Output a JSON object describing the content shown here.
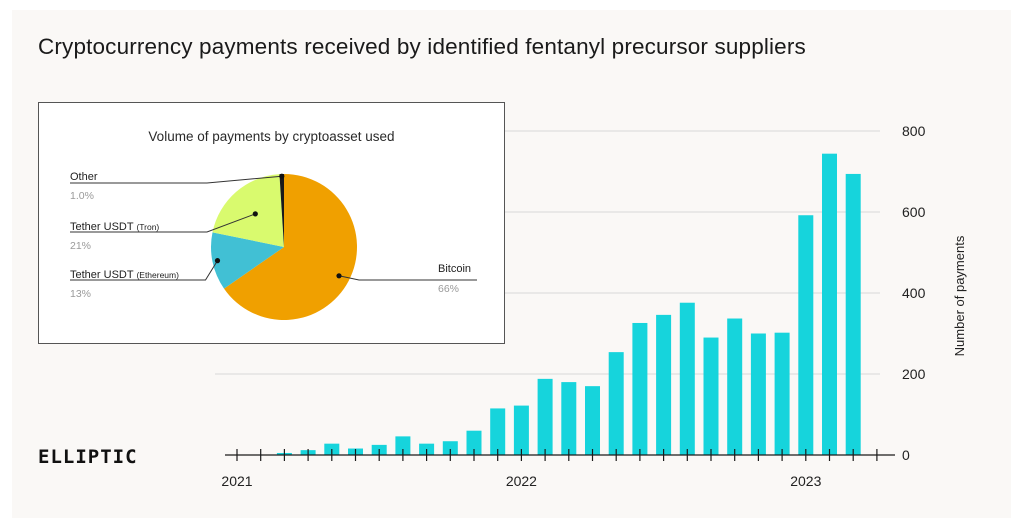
{
  "title": "Cryptocurrency payments received by identified fentanyl precursor suppliers",
  "logo": "ELLIPTIC",
  "colors": {
    "bar": "#16d4dc",
    "grid": "#d8d8d8",
    "bitcoin": "#f0a000",
    "tether_tron": "#d9fa6e",
    "tether_ethereum": "#41c0d4",
    "other": "#1a1a1a"
  },
  "chart_data": [
    {
      "type": "bar",
      "title": "Cryptocurrency payments received by identified fentanyl precursor suppliers",
      "ylabel": "Number of payments",
      "xlabel": "",
      "ylim": [
        0,
        800
      ],
      "yticks": [
        0,
        200,
        400,
        600,
        800
      ],
      "xtick_labels": [
        "2021",
        "2022",
        "2023"
      ],
      "grid": "horizontal",
      "categories": [
        "2021-01",
        "2021-02",
        "2021-03",
        "2021-04",
        "2021-05",
        "2021-06",
        "2021-07",
        "2021-08",
        "2021-09",
        "2021-10",
        "2021-11",
        "2021-12",
        "2022-01",
        "2022-02",
        "2022-03",
        "2022-04",
        "2022-05",
        "2022-06",
        "2022-07",
        "2022-08",
        "2022-09",
        "2022-10",
        "2022-11",
        "2022-12",
        "2023-01",
        "2023-02",
        "2023-03",
        "2023-04"
      ],
      "values": [
        0,
        0,
        5,
        12,
        28,
        16,
        25,
        46,
        28,
        34,
        60,
        115,
        122,
        188,
        180,
        170,
        254,
        326,
        346,
        376,
        290,
        337,
        300,
        302,
        592,
        744,
        694,
        0
      ]
    },
    {
      "type": "pie",
      "title": "Volume of payments by cryptoasset used",
      "slices": [
        {
          "label": "Bitcoin",
          "value": 66,
          "display": "66%"
        },
        {
          "label": "Tether USDT",
          "note": "(Ethereum)",
          "value": 13,
          "display": "13%"
        },
        {
          "label": "Tether USDT",
          "note": "(Tron)",
          "value": 21,
          "display": "21%"
        },
        {
          "label": "Other",
          "value": 1.0,
          "display": "1.0%"
        }
      ]
    }
  ]
}
